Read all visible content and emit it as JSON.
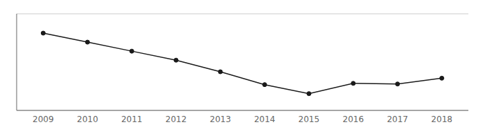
{
  "chart_data": {
    "type": "line",
    "x": [
      2009,
      2010,
      2011,
      2012,
      2013,
      2014,
      2015,
      2016,
      2017,
      2018
    ],
    "values": [
      3050,
      2980,
      2910,
      2840,
      2750,
      2650,
      2580,
      2660,
      2655,
      2700
    ],
    "color": "#1a1a1a",
    "marker": "circle",
    "xlim": [
      2008.4,
      2018.6
    ],
    "xticks": [
      2009,
      2010,
      2011,
      2012,
      2013,
      2014,
      2015,
      2016,
      2017,
      2018
    ],
    "ylim": [
      2450,
      3200
    ],
    "yticks": [
      2500,
      2600,
      2700,
      2800,
      2900,
      3000,
      3100
    ],
    "grid": true,
    "tick_labels": "x"
  }
}
